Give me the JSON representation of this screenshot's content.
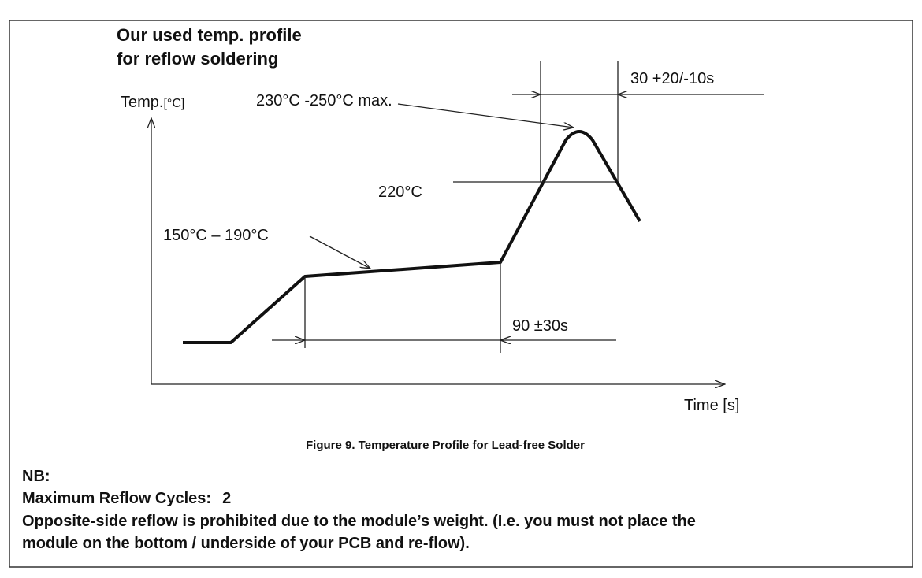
{
  "figure": {
    "title_lines": [
      "Our used temp. profile",
      "for reflow soldering"
    ],
    "y_axis": {
      "label": "Temp.",
      "unit": "[°C]"
    },
    "x_axis": {
      "label": "Time [s]"
    },
    "annotations": {
      "peak": "230°C -250°C max.",
      "time_above_liquidus": "30 +20/-10s",
      "liquidus": "220°C",
      "soak": "150°C – 190°C",
      "soak_time": "90 ±30s"
    },
    "caption": "Figure 9.  Temperature Profile for Lead-free Solder"
  },
  "notes": {
    "heading": "NB:",
    "max_cycles_label": "Maximum Reflow Cycles:",
    "max_cycles_value": "2",
    "lines": [
      "Opposite-side reflow is prohibited due to the module’s weight. (I.e. you must not place the",
      "module on the bottom / underside of your PCB and re-flow)."
    ]
  }
}
